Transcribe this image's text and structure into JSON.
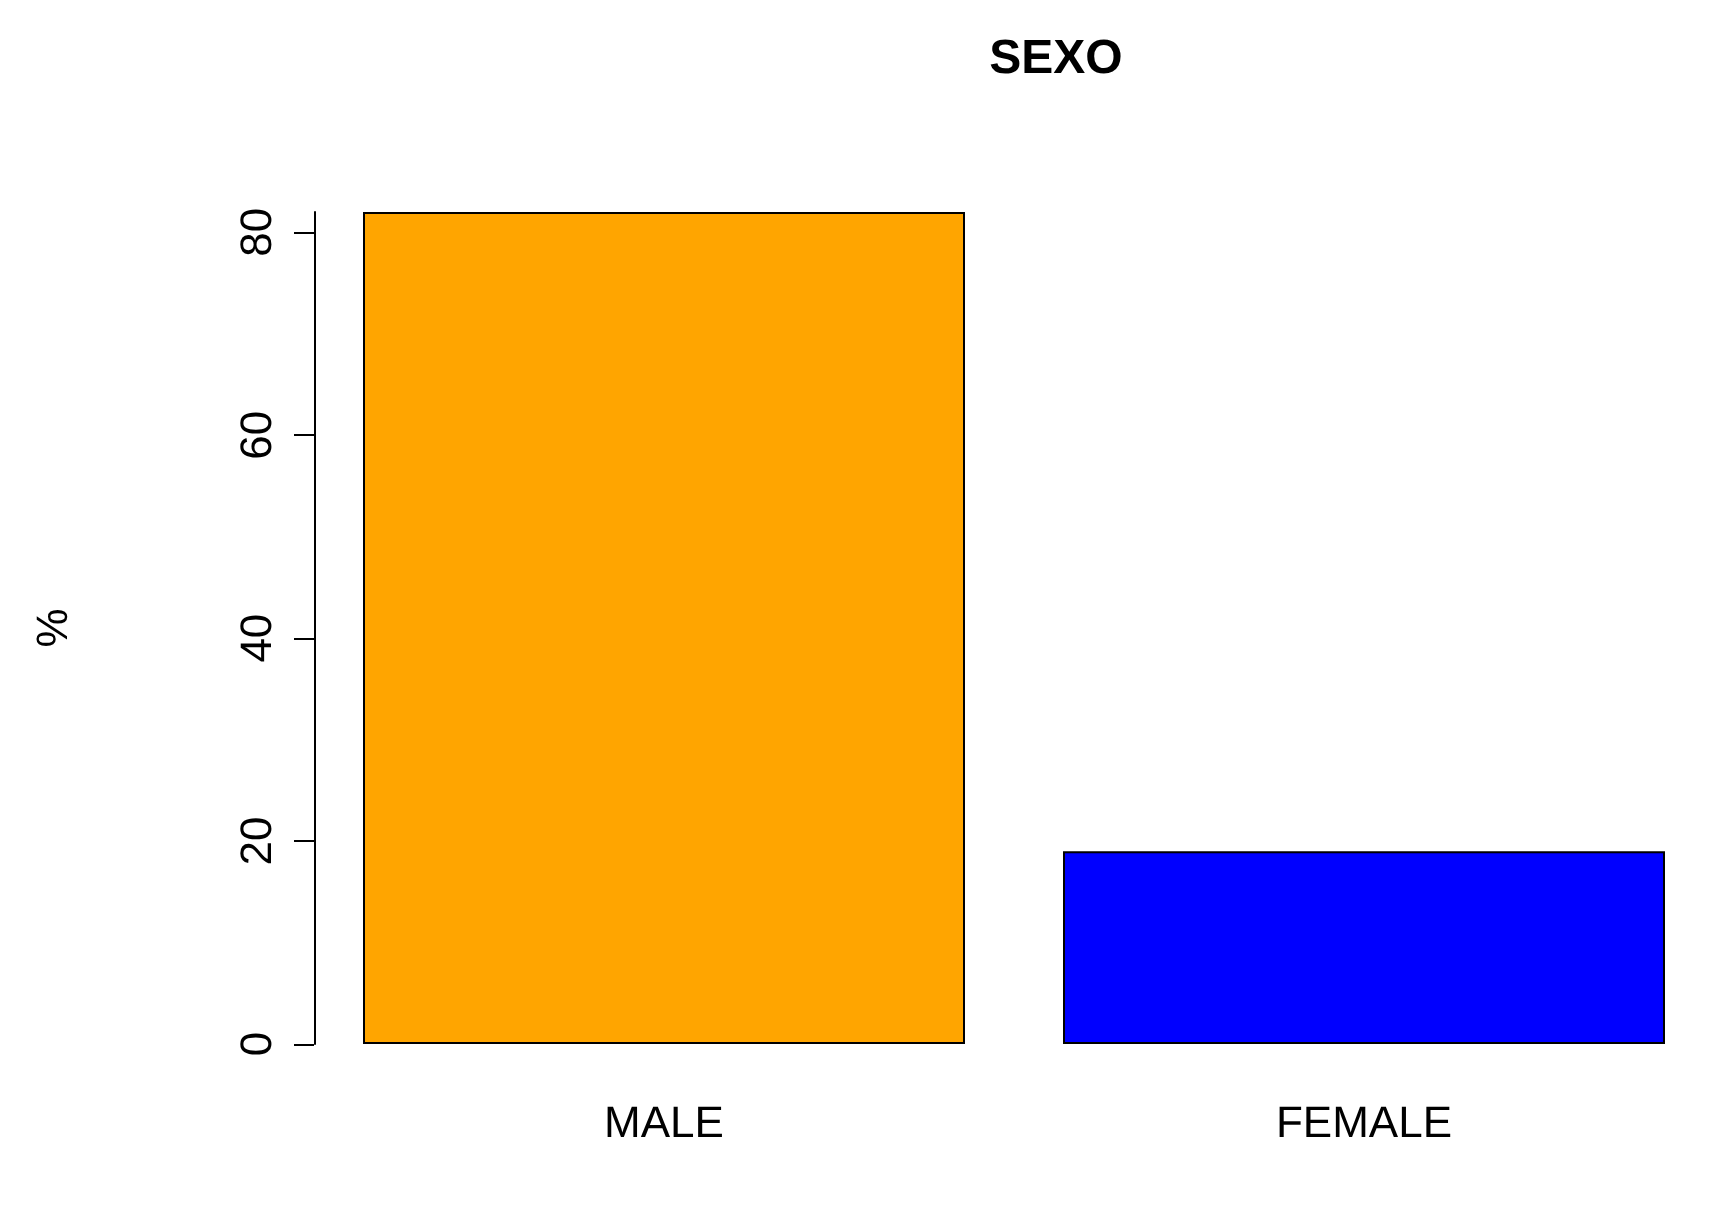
{
  "chart_data": {
    "type": "bar",
    "title": "SEXO",
    "ylabel": "%",
    "categories": [
      "MALE",
      "FEMALE"
    ],
    "values": [
      82,
      19
    ],
    "colors": [
      "#ffa500",
      "#0000ff"
    ],
    "ylim": [
      0,
      82
    ],
    "yticks": [
      0,
      20,
      40,
      60,
      80
    ],
    "grid": false
  }
}
